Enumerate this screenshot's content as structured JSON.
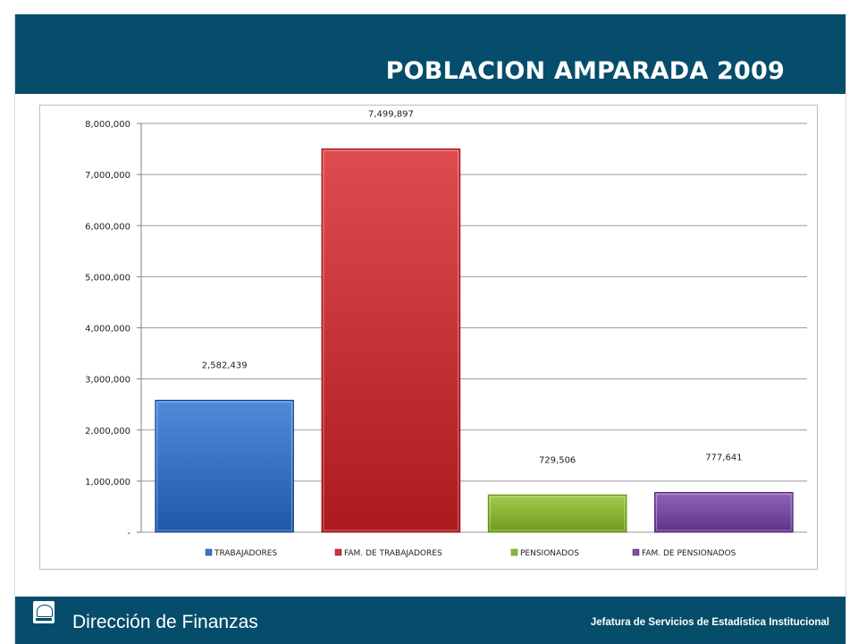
{
  "slide": {
    "title": "POBLACION AMPARADA 2009",
    "footer_left": "Dirección de Finanzas",
    "footer_right": "Jefatura de Servicios de Estadística Institucional"
  },
  "chart_data": {
    "type": "bar",
    "title": "",
    "xlabel": "",
    "ylabel": "",
    "categories": [
      "TRABAJADORES",
      "FAM. DE TRABAJADORES",
      "PENSIONADOS",
      "FAM. DE PENSIONADOS"
    ],
    "values": [
      2582439,
      7499897,
      729506,
      777641
    ],
    "value_labels": [
      "2,582,439",
      "7,499,897",
      "729,506",
      "777,641"
    ],
    "colors": [
      "#3b74c2",
      "#c8363a",
      "#8cb63a",
      "#7a4fa3"
    ],
    "ylim": [
      0,
      8000000
    ],
    "yticks": [
      0,
      1000000,
      2000000,
      3000000,
      4000000,
      5000000,
      6000000,
      7000000,
      8000000
    ],
    "ytick_labels": [
      "-",
      "1,000,000",
      "2,000,000",
      "3,000,000",
      "4,000,000",
      "5,000,000",
      "6,000,000",
      "7,000,000",
      "8,000,000"
    ],
    "grid": true,
    "legend": "bottom"
  }
}
